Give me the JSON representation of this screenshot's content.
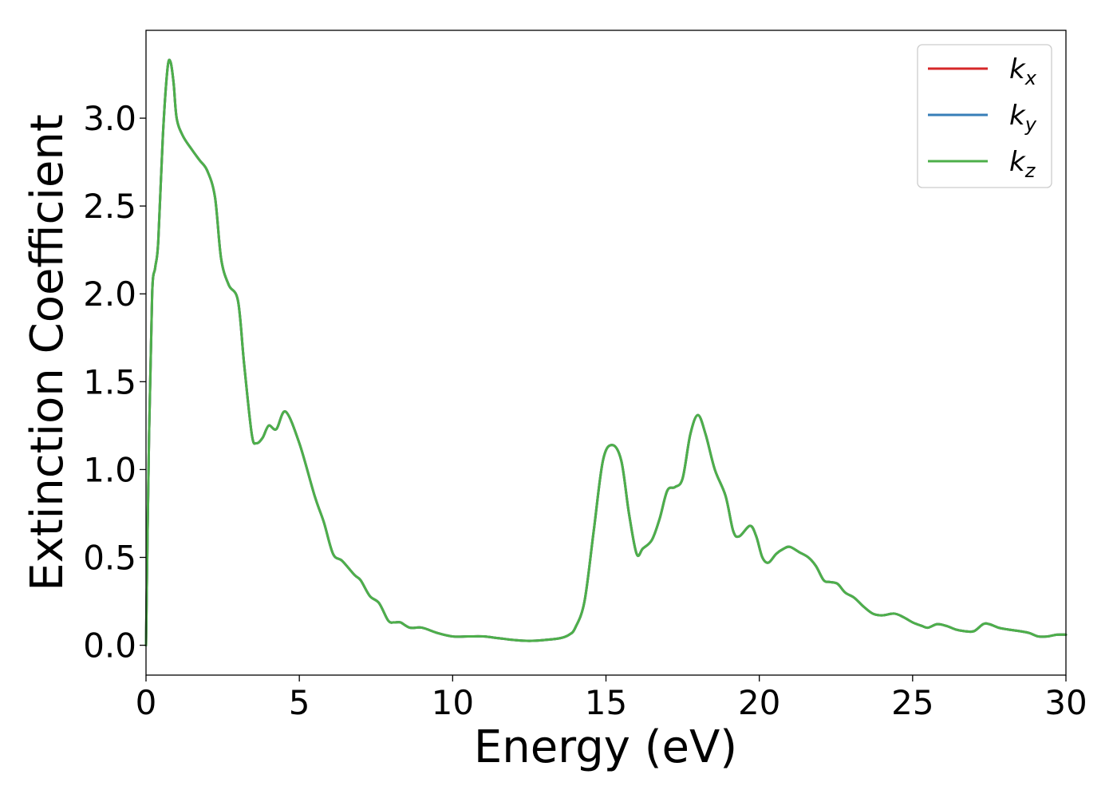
{
  "chart_data": {
    "type": "line",
    "title": "",
    "xlabel": "Energy (eV)",
    "ylabel": "Extinction Coefficient",
    "xlim": [
      0,
      30
    ],
    "ylim": [
      -0.17,
      3.5
    ],
    "xticks": [
      0,
      5,
      10,
      15,
      20,
      25,
      30
    ],
    "xtick_labels": [
      "0",
      "5",
      "10",
      "15",
      "20",
      "25",
      "30"
    ],
    "yticks": [
      0.0,
      0.5,
      1.0,
      1.5,
      2.0,
      2.5,
      3.0
    ],
    "ytick_labels": [
      "0.0",
      "0.5",
      "1.0",
      "1.5",
      "2.0",
      "2.5",
      "3.0"
    ],
    "grid": false,
    "legend_position": "top-right",
    "series": [
      {
        "name": "k",
        "subscript": "x",
        "color": "#d62728",
        "x": [
          0.0,
          0.1,
          0.2,
          0.3,
          0.4,
          0.55,
          0.7,
          0.8,
          0.9,
          1.0,
          1.2,
          1.5,
          1.75,
          2.0,
          2.25,
          2.45,
          2.7,
          3.0,
          3.2,
          3.45,
          3.6,
          3.8,
          4.0,
          4.25,
          4.55,
          5.0,
          5.5,
          5.8,
          6.1,
          6.4,
          6.8,
          7.0,
          7.3,
          7.6,
          7.9,
          8.1,
          8.3,
          8.6,
          9.0,
          9.5,
          10.0,
          10.5,
          11.0,
          11.5,
          12.0,
          12.5,
          13.0,
          13.5,
          13.8,
          14.0,
          14.3,
          14.6,
          14.9,
          15.2,
          15.5,
          15.75,
          16.0,
          16.2,
          16.5,
          16.75,
          17.0,
          17.25,
          17.5,
          17.75,
          18.0,
          18.25,
          18.55,
          18.9,
          19.15,
          19.35,
          19.7,
          19.9,
          20.1,
          20.3,
          20.55,
          20.8,
          21.0,
          21.3,
          21.6,
          21.85,
          22.1,
          22.3,
          22.55,
          22.8,
          23.1,
          23.4,
          23.7,
          24.0,
          24.4,
          24.7,
          25.0,
          25.3,
          25.5,
          25.8,
          26.1,
          26.4,
          26.7,
          27.0,
          27.3,
          27.5,
          27.8,
          28.1,
          28.5,
          28.8,
          29.1,
          29.4,
          29.7,
          30.0
        ],
        "y": [
          0.0,
          1.2,
          2.0,
          2.15,
          2.3,
          2.9,
          3.28,
          3.32,
          3.2,
          3.0,
          2.9,
          2.82,
          2.76,
          2.7,
          2.55,
          2.2,
          2.05,
          1.96,
          1.6,
          1.2,
          1.15,
          1.18,
          1.25,
          1.23,
          1.33,
          1.15,
          0.85,
          0.7,
          0.52,
          0.48,
          0.4,
          0.37,
          0.28,
          0.24,
          0.14,
          0.13,
          0.13,
          0.1,
          0.1,
          0.07,
          0.05,
          0.05,
          0.05,
          0.04,
          0.03,
          0.025,
          0.03,
          0.04,
          0.06,
          0.1,
          0.25,
          0.65,
          1.05,
          1.14,
          1.05,
          0.75,
          0.52,
          0.55,
          0.6,
          0.72,
          0.88,
          0.9,
          0.95,
          1.2,
          1.31,
          1.2,
          1.0,
          0.85,
          0.65,
          0.62,
          0.68,
          0.62,
          0.5,
          0.47,
          0.52,
          0.55,
          0.56,
          0.53,
          0.5,
          0.45,
          0.37,
          0.36,
          0.35,
          0.3,
          0.27,
          0.22,
          0.18,
          0.17,
          0.18,
          0.16,
          0.13,
          0.11,
          0.1,
          0.12,
          0.11,
          0.09,
          0.08,
          0.08,
          0.12,
          0.12,
          0.1,
          0.09,
          0.08,
          0.07,
          0.05,
          0.05,
          0.06,
          0.06
        ]
      },
      {
        "name": "k",
        "subscript": "y",
        "color": "#377eb8",
        "x": [
          0.0,
          0.1,
          0.2,
          0.3,
          0.4,
          0.55,
          0.7,
          0.8,
          0.9,
          1.0,
          1.2,
          1.5,
          1.75,
          2.0,
          2.25,
          2.45,
          2.7,
          3.0,
          3.2,
          3.45,
          3.6,
          3.8,
          4.0,
          4.25,
          4.55,
          5.0,
          5.5,
          5.8,
          6.1,
          6.4,
          6.8,
          7.0,
          7.3,
          7.6,
          7.9,
          8.1,
          8.3,
          8.6,
          9.0,
          9.5,
          10.0,
          10.5,
          11.0,
          11.5,
          12.0,
          12.5,
          13.0,
          13.5,
          13.8,
          14.0,
          14.3,
          14.6,
          14.9,
          15.2,
          15.5,
          15.75,
          16.0,
          16.2,
          16.5,
          16.75,
          17.0,
          17.25,
          17.5,
          17.75,
          18.0,
          18.25,
          18.55,
          18.9,
          19.15,
          19.35,
          19.7,
          19.9,
          20.1,
          20.3,
          20.55,
          20.8,
          21.0,
          21.3,
          21.6,
          21.85,
          22.1,
          22.3,
          22.55,
          22.8,
          23.1,
          23.4,
          23.7,
          24.0,
          24.4,
          24.7,
          25.0,
          25.3,
          25.5,
          25.8,
          26.1,
          26.4,
          26.7,
          27.0,
          27.3,
          27.5,
          27.8,
          28.1,
          28.5,
          28.8,
          29.1,
          29.4,
          29.7,
          30.0
        ],
        "y": [
          0.0,
          1.2,
          2.0,
          2.15,
          2.3,
          2.9,
          3.28,
          3.32,
          3.2,
          3.0,
          2.9,
          2.82,
          2.76,
          2.7,
          2.55,
          2.2,
          2.05,
          1.96,
          1.6,
          1.2,
          1.15,
          1.18,
          1.25,
          1.23,
          1.33,
          1.15,
          0.85,
          0.7,
          0.52,
          0.48,
          0.4,
          0.37,
          0.28,
          0.24,
          0.14,
          0.13,
          0.13,
          0.1,
          0.1,
          0.07,
          0.05,
          0.05,
          0.05,
          0.04,
          0.03,
          0.025,
          0.03,
          0.04,
          0.06,
          0.1,
          0.25,
          0.65,
          1.05,
          1.14,
          1.05,
          0.75,
          0.52,
          0.55,
          0.6,
          0.72,
          0.88,
          0.9,
          0.95,
          1.2,
          1.31,
          1.2,
          1.0,
          0.85,
          0.65,
          0.62,
          0.68,
          0.62,
          0.5,
          0.47,
          0.52,
          0.55,
          0.56,
          0.53,
          0.5,
          0.45,
          0.37,
          0.36,
          0.35,
          0.3,
          0.27,
          0.22,
          0.18,
          0.17,
          0.18,
          0.16,
          0.13,
          0.11,
          0.1,
          0.12,
          0.11,
          0.09,
          0.08,
          0.08,
          0.12,
          0.12,
          0.1,
          0.09,
          0.08,
          0.07,
          0.05,
          0.05,
          0.06,
          0.06
        ]
      },
      {
        "name": "k",
        "subscript": "z",
        "color": "#4daf4a",
        "x": [
          0.0,
          0.1,
          0.2,
          0.3,
          0.4,
          0.55,
          0.7,
          0.8,
          0.9,
          1.0,
          1.2,
          1.5,
          1.75,
          2.0,
          2.25,
          2.45,
          2.7,
          3.0,
          3.2,
          3.45,
          3.6,
          3.8,
          4.0,
          4.25,
          4.55,
          5.0,
          5.5,
          5.8,
          6.1,
          6.4,
          6.8,
          7.0,
          7.3,
          7.6,
          7.9,
          8.1,
          8.3,
          8.6,
          9.0,
          9.5,
          10.0,
          10.5,
          11.0,
          11.5,
          12.0,
          12.5,
          13.0,
          13.5,
          13.8,
          14.0,
          14.3,
          14.6,
          14.9,
          15.2,
          15.5,
          15.75,
          16.0,
          16.2,
          16.5,
          16.75,
          17.0,
          17.25,
          17.5,
          17.75,
          18.0,
          18.25,
          18.55,
          18.9,
          19.15,
          19.35,
          19.7,
          19.9,
          20.1,
          20.3,
          20.55,
          20.8,
          21.0,
          21.3,
          21.6,
          21.85,
          22.1,
          22.3,
          22.55,
          22.8,
          23.1,
          23.4,
          23.7,
          24.0,
          24.4,
          24.7,
          25.0,
          25.3,
          25.5,
          25.8,
          26.1,
          26.4,
          26.7,
          27.0,
          27.3,
          27.5,
          27.8,
          28.1,
          28.5,
          28.8,
          29.1,
          29.4,
          29.7,
          30.0
        ],
        "y": [
          0.0,
          1.2,
          2.0,
          2.15,
          2.3,
          2.9,
          3.28,
          3.32,
          3.2,
          3.0,
          2.9,
          2.82,
          2.76,
          2.7,
          2.55,
          2.2,
          2.05,
          1.96,
          1.6,
          1.2,
          1.15,
          1.18,
          1.25,
          1.23,
          1.33,
          1.15,
          0.85,
          0.7,
          0.52,
          0.48,
          0.4,
          0.37,
          0.28,
          0.24,
          0.14,
          0.13,
          0.13,
          0.1,
          0.1,
          0.07,
          0.05,
          0.05,
          0.05,
          0.04,
          0.03,
          0.025,
          0.03,
          0.04,
          0.06,
          0.1,
          0.25,
          0.65,
          1.05,
          1.14,
          1.05,
          0.75,
          0.52,
          0.55,
          0.6,
          0.72,
          0.88,
          0.9,
          0.95,
          1.2,
          1.31,
          1.2,
          1.0,
          0.85,
          0.65,
          0.62,
          0.68,
          0.62,
          0.5,
          0.47,
          0.52,
          0.55,
          0.56,
          0.53,
          0.5,
          0.45,
          0.37,
          0.36,
          0.35,
          0.3,
          0.27,
          0.22,
          0.18,
          0.17,
          0.18,
          0.16,
          0.13,
          0.11,
          0.1,
          0.12,
          0.11,
          0.09,
          0.08,
          0.08,
          0.12,
          0.12,
          0.1,
          0.09,
          0.08,
          0.07,
          0.05,
          0.05,
          0.06,
          0.06
        ]
      }
    ]
  }
}
